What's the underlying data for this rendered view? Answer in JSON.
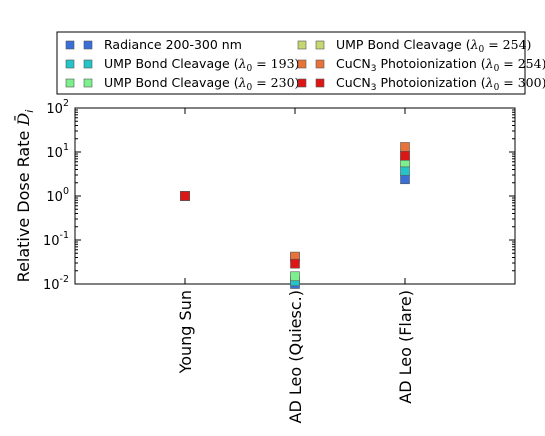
{
  "chart_data": {
    "type": "scatter",
    "categories": [
      "Young Sun",
      "AD Leo (Quiesc.)",
      "AD Leo (Flare)"
    ],
    "ylabel": "Relative Dose Rate",
    "ylabel_symbol": "D̄",
    "ylabel_subscript": "i",
    "yscale": "log",
    "ylim": [
      0.01,
      100
    ],
    "yticks": [
      {
        "base": "10",
        "exp": "-2",
        "value": 0.01
      },
      {
        "base": "10",
        "exp": "-1",
        "value": 0.1
      },
      {
        "base": "10",
        "exp": "0",
        "value": 1
      },
      {
        "base": "10",
        "exp": "1",
        "value": 10
      },
      {
        "base": "10",
        "exp": "2",
        "value": 100
      }
    ],
    "legend_position": "top",
    "series": [
      {
        "name": "Radiance 200-300 nm",
        "color": "#3a6fd8",
        "values": [
          1,
          0.01,
          2.4
        ]
      },
      {
        "name": "UMP Bond Cleavage (λ0 = 193)",
        "name_main": "UMP Bond Cleavage (",
        "name_lambda": "λ",
        "name_sub": "0",
        "name_rest": " = 193)",
        "color": "#25c4c8",
        "values": [
          1,
          0.0115,
          3.7
        ]
      },
      {
        "name": "UMP Bond Cleavage (λ0 = 230)",
        "name_main": "UMP Bond Cleavage (",
        "name_lambda": "λ",
        "name_sub": "0",
        "name_rest": " = 230)",
        "color": "#7cf08c",
        "values": [
          1,
          0.015,
          5.8
        ]
      },
      {
        "name": "UMP Bond Cleavage (λ0 = 254)",
        "name_main": "UMP Bond Cleavage (",
        "name_lambda": "λ",
        "name_sub": "0",
        "name_rest": " = 254)",
        "color": "#c5d770",
        "values": [
          1,
          0.04,
          8.5
        ]
      },
      {
        "name": "CuCN3 Photoionization (λ0 = 254)",
        "name_main": "CuCN",
        "name_main_sub": "3",
        "name_main2": " Photoionization (",
        "name_lambda": "λ",
        "name_sub": "0",
        "name_rest": " = 254)",
        "color": "#e8733a",
        "values": [
          1,
          0.042,
          13
        ]
      },
      {
        "name": "CuCN3 Photoionization (λ0 = 300)",
        "name_main": "CuCN",
        "name_main_sub": "3",
        "name_main2": " Photoionization (",
        "name_lambda": "λ",
        "name_sub": "0",
        "name_rest": " = 300)",
        "color": "#dd1515",
        "values": [
          1,
          0.029,
          8.2
        ]
      }
    ]
  }
}
